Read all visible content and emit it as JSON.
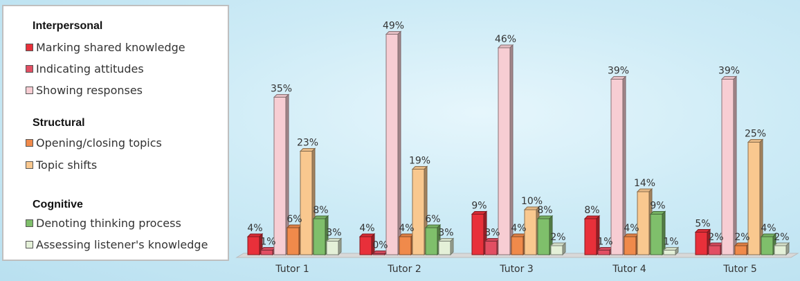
{
  "chart_data": {
    "type": "bar",
    "categories": [
      "Tutor 1",
      "Tutor 2",
      "Tutor 3",
      "Tutor 4",
      "Tutor 5"
    ],
    "series": [
      {
        "name": "Marking shared knowledge",
        "group": "Interpersonal",
        "color": "#e8303a",
        "values": [
          4,
          4,
          9,
          8,
          5
        ],
        "labels": [
          "4%",
          "4%",
          "9%",
          "8%",
          "5%"
        ]
      },
      {
        "name": "Indicating attitudes",
        "group": "Interpersonal",
        "color": "#e24f63",
        "values": [
          1,
          0,
          3,
          1,
          2
        ],
        "labels": [
          "1%",
          "0%",
          "3%",
          "1%",
          "2%"
        ]
      },
      {
        "name": "Showing responses",
        "group": "Interpersonal",
        "color": "#f7cdd3",
        "values": [
          35,
          49,
          46,
          39,
          39
        ],
        "labels": [
          "35%",
          "49%",
          "46%",
          "39%",
          "39%"
        ]
      },
      {
        "name": "Opening/closing topics",
        "group": "Structural",
        "color": "#f08a4b",
        "values": [
          6,
          4,
          4,
          4,
          2
        ],
        "labels": [
          "6%",
          "4%",
          "4%",
          "4%",
          "2%"
        ]
      },
      {
        "name": "Topic shifts",
        "group": "Structural",
        "color": "#f9c88f",
        "values": [
          23,
          19,
          10,
          14,
          25
        ],
        "labels": [
          "23%",
          "19%",
          "10%",
          "14%",
          "25%"
        ]
      },
      {
        "name": "Denoting thinking process",
        "group": "Cognitive",
        "color": "#7fbf6b",
        "values": [
          8,
          6,
          8,
          9,
          4
        ],
        "labels": [
          "8%",
          "6%",
          "8%",
          "9%",
          "4%"
        ]
      },
      {
        "name": "Assessing listener's knowledge",
        "group": "Cognitive",
        "color": "#e4f0d8",
        "values": [
          3,
          3,
          2,
          1,
          2
        ],
        "labels": [
          "3%",
          "3%",
          "2%",
          "1%",
          "2%"
        ]
      }
    ],
    "ylim": [
      0,
      50
    ],
    "grid": false,
    "legend_position": "left",
    "legend_groups": [
      "Interpersonal",
      "Structural",
      "Cognitive"
    ]
  }
}
